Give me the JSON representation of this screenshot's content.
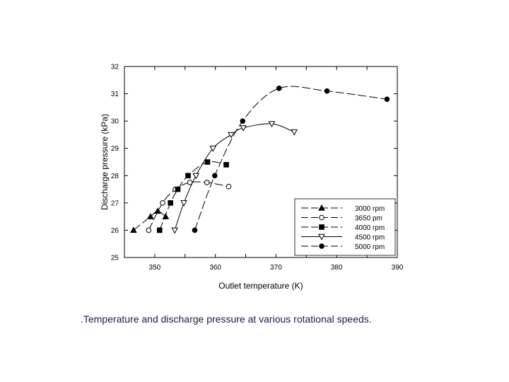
{
  "caption": ".Temperature and discharge pressure at various rotational speeds.",
  "chart_data": {
    "type": "line",
    "title": "",
    "xlabel": "Outlet temperature (K)",
    "ylabel": "Discharge pressure (kPa)",
    "xlim": [
      345,
      390
    ],
    "ylim": [
      25,
      32
    ],
    "xticks": [
      350,
      355,
      360,
      365,
      370,
      375,
      380,
      385,
      390
    ],
    "yticks": [
      25,
      26,
      27,
      28,
      29,
      30,
      31,
      32
    ],
    "xtick_labels": [
      "350",
      "360",
      "370",
      "380",
      "390"
    ],
    "ytick_labels": [
      "25",
      "26",
      "27",
      "28",
      "29",
      "30",
      "31",
      "32"
    ],
    "grid": false,
    "legend_position": "bottom-right",
    "series": [
      {
        "name": "3000 rpm",
        "marker": "triangle-up-filled",
        "dash": "long-dash",
        "x": [
          346.5,
          349.3,
          350.5,
          351.8
        ],
        "y": [
          26.0,
          26.5,
          26.7,
          26.5
        ]
      },
      {
        "name": "3650 pm",
        "marker": "circle-open",
        "dash": "long-dash",
        "x": [
          349.0,
          351.3,
          353.4,
          355.8,
          358.6,
          362.2
        ],
        "y": [
          26.0,
          27.0,
          27.5,
          27.75,
          27.75,
          27.6
        ]
      },
      {
        "name": "4000 rpm",
        "marker": "square-filled",
        "dash": "long-dash",
        "x": [
          350.8,
          352.6,
          353.8,
          355.5,
          358.7,
          361.8
        ],
        "y": [
          26.0,
          27.0,
          27.5,
          28.0,
          28.5,
          28.4
        ]
      },
      {
        "name": "4500 rpm",
        "marker": "triangle-down-open",
        "dash": "solid",
        "x": [
          353.3,
          354.8,
          356.8,
          359.6,
          362.6,
          364.6,
          369.3,
          373.0
        ],
        "y": [
          26.0,
          27.0,
          28.0,
          29.0,
          29.5,
          29.75,
          29.9,
          29.6
        ]
      },
      {
        "name": "5000 rpm",
        "marker": "circle-filled",
        "dash": "long-dash",
        "x": [
          356.6,
          359.9,
          364.5,
          370.5,
          378.4,
          388.3
        ],
        "y": [
          26.0,
          28.0,
          30.0,
          31.2,
          31.1,
          30.8
        ]
      }
    ]
  }
}
